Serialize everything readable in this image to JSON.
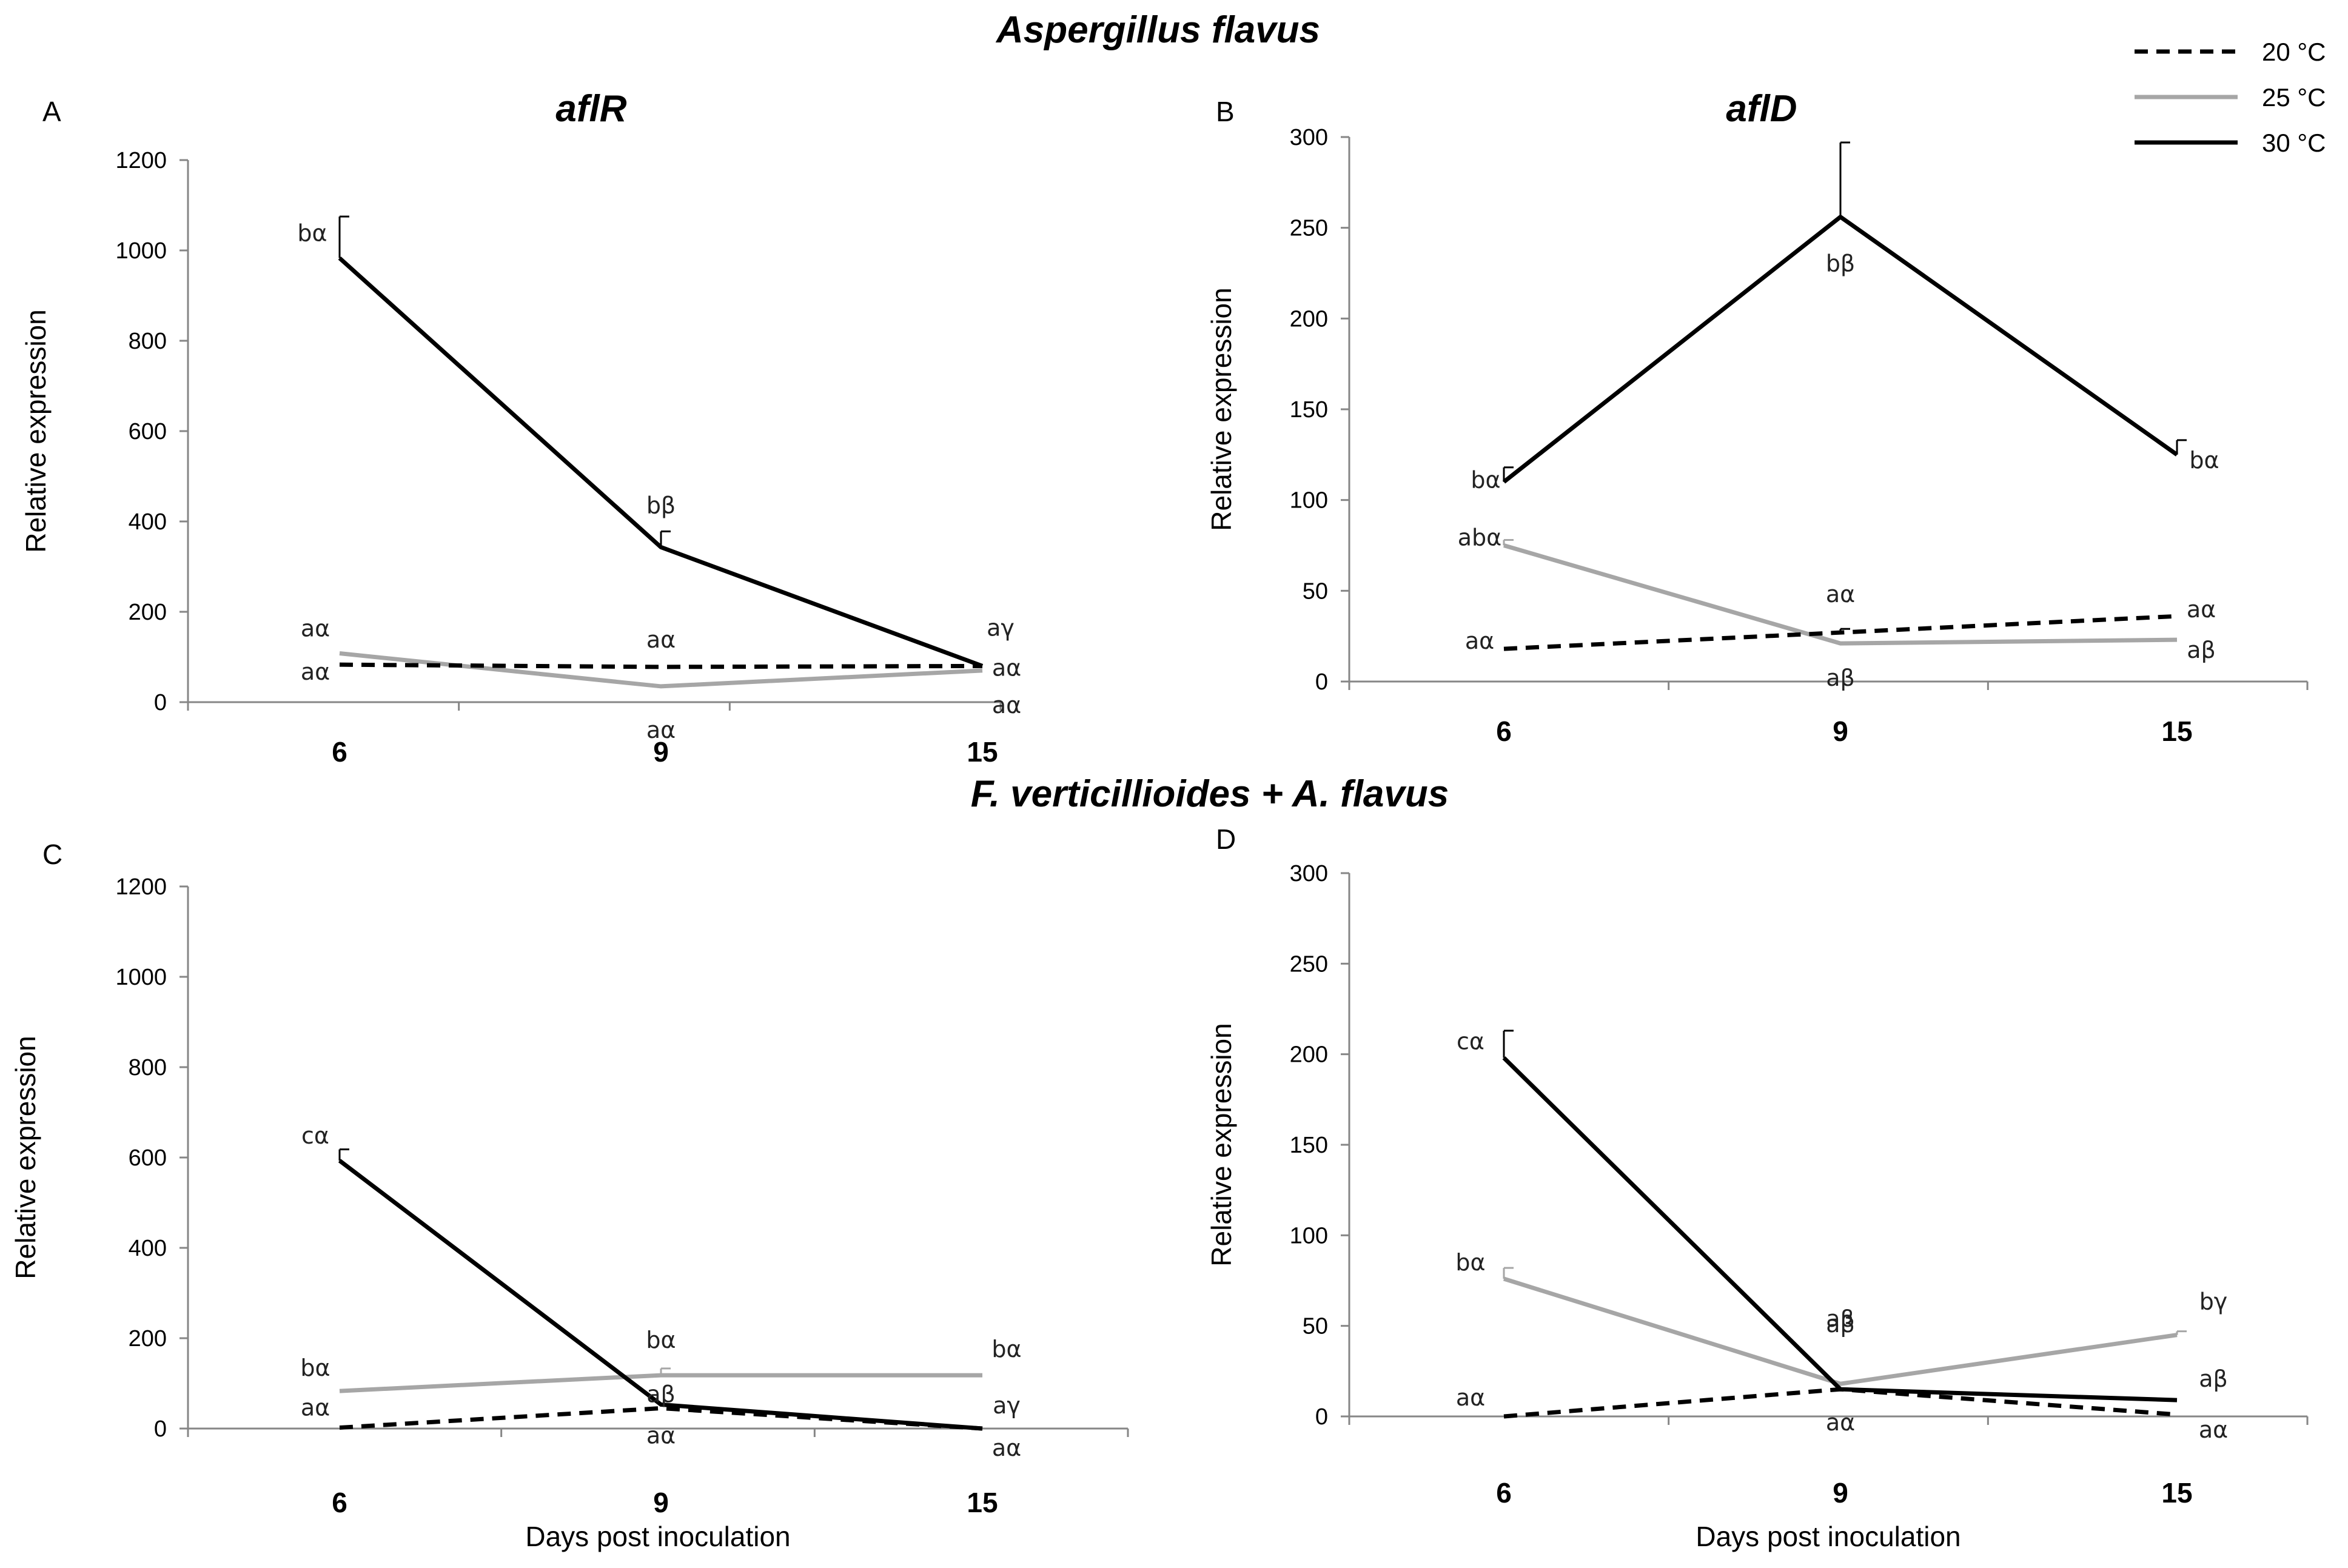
{
  "figure": {
    "title_top": "Aspergillus flavus",
    "title_bottom": "F. verticillioides + A. flavus"
  },
  "legend": [
    {
      "name": "20 °C",
      "color": "#000000",
      "dash": true
    },
    {
      "name": "25 °C",
      "color": "#a6a6a6",
      "dash": false
    },
    {
      "name": "30 °C",
      "color": "#000000",
      "dash": false
    }
  ],
  "chart_data": [
    {
      "panel": "A",
      "type": "line",
      "title": "aflR",
      "categories": [
        "6",
        "9",
        "15"
      ],
      "ylabel": "Relative expression",
      "xlabel": "",
      "ylim": [
        0,
        1200
      ],
      "yticks": [
        0,
        200,
        400,
        600,
        800,
        1000,
        1200
      ],
      "series": [
        {
          "name": "20 °C",
          "values": [
            83,
            78,
            80
          ],
          "errors": [
            0,
            0,
            0
          ],
          "labels": [
            "aα",
            "aα",
            "aα"
          ]
        },
        {
          "name": "25 °C",
          "values": [
            108,
            35,
            70
          ],
          "errors": [
            0,
            0,
            0
          ],
          "labels": [
            "aα",
            "aα",
            "aα"
          ]
        },
        {
          "name": "30 °C",
          "values": [
            983,
            343,
            80
          ],
          "errors": [
            92,
            35,
            0
          ],
          "labels": [
            "bα",
            "bβ",
            "aγ"
          ]
        }
      ]
    },
    {
      "panel": "B",
      "type": "line",
      "title": "aflD",
      "categories": [
        "6",
        "9",
        "15"
      ],
      "ylabel": "Relative expression",
      "xlabel": "",
      "ylim": [
        0,
        300
      ],
      "yticks": [
        0,
        50,
        100,
        150,
        200,
        250,
        300
      ],
      "series": [
        {
          "name": "20 °C",
          "values": [
            18,
            27,
            36
          ],
          "errors": [
            0,
            2,
            0
          ],
          "labels": [
            "aα",
            "aα",
            "aα"
          ]
        },
        {
          "name": "25 °C",
          "values": [
            75,
            21,
            23
          ],
          "errors": [
            3,
            0,
            0
          ],
          "labels": [
            "abα",
            "aβ",
            "aβ"
          ]
        },
        {
          "name": "30 °C",
          "values": [
            110,
            256,
            125
          ],
          "errors": [
            8,
            41,
            8
          ],
          "labels": [
            "bα",
            "bβ",
            "bα"
          ]
        }
      ]
    },
    {
      "panel": "C",
      "type": "line",
      "title": "",
      "categories": [
        "6",
        "9",
        "15"
      ],
      "ylabel": "Relative expression",
      "xlabel": "Days post inoculation",
      "ylim": [
        0,
        1200
      ],
      "yticks": [
        0,
        200,
        400,
        600,
        800,
        1000,
        1200
      ],
      "series": [
        {
          "name": "20 °C",
          "values": [
            2,
            45,
            0
          ],
          "errors": [
            0,
            0,
            0
          ],
          "labels": [
            "aα",
            "aα",
            "aα"
          ]
        },
        {
          "name": "25 °C",
          "values": [
            83,
            118,
            118
          ],
          "errors": [
            0,
            15,
            0
          ],
          "labels": [
            "bα",
            "bα",
            "bα"
          ]
        },
        {
          "name": "30 °C",
          "values": [
            593,
            53,
            0
          ],
          "errors": [
            25,
            0,
            0
          ],
          "labels": [
            "cα",
            "aβ",
            "aγ"
          ]
        }
      ]
    },
    {
      "panel": "D",
      "type": "line",
      "title": "",
      "categories": [
        "6",
        "9",
        "15"
      ],
      "ylabel": "Relative expression",
      "xlabel": "Days post inoculation",
      "ylim": [
        0,
        300
      ],
      "yticks": [
        0,
        50,
        100,
        150,
        200,
        250,
        300
      ],
      "series": [
        {
          "name": "20 °C",
          "values": [
            0,
            15,
            1
          ],
          "errors": [
            0,
            0,
            0
          ],
          "labels": [
            "aα",
            "aα",
            "aα"
          ]
        },
        {
          "name": "25 °C",
          "values": [
            76,
            18,
            45
          ],
          "errors": [
            6,
            0,
            2
          ],
          "labels": [
            "bα",
            "aβ",
            "bγ"
          ]
        },
        {
          "name": "30 °C",
          "values": [
            198,
            15,
            9
          ],
          "errors": [
            15,
            0,
            0
          ],
          "labels": [
            "cα",
            "aβ",
            "aβ"
          ]
        }
      ]
    }
  ]
}
